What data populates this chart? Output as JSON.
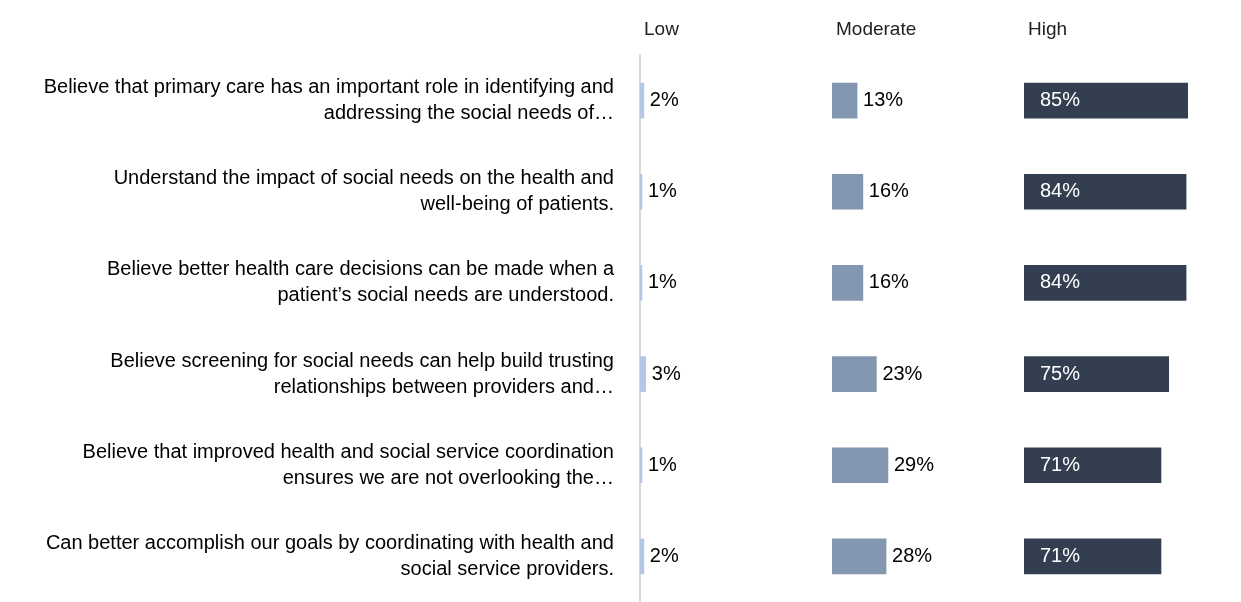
{
  "chart_data": [
    {
      "type": "bar",
      "orientation": "horizontal",
      "title": "Low",
      "categories": [
        "Believe that primary care has an important role in identifying and addressing the social needs of…",
        "Understand the impact of social needs on the health and well-being of patients.",
        "Believe better health care decisions can be made when a patient’s social needs are understood.",
        "Believe screening for social needs can help build trusting relationships between providers and…",
        "Believe that improved health and social service coordination ensures we are not overlooking the…",
        "Can better accomplish our goals by coordinating with health and social service providers."
      ],
      "values": [
        2,
        1,
        1,
        3,
        1,
        2
      ],
      "value_labels": [
        "2%",
        "1%",
        "1%",
        "3%",
        "1%",
        "2%"
      ],
      "color": "#b4c7e7",
      "tick_labels": "y"
    },
    {
      "type": "bar",
      "orientation": "horizontal",
      "title": "Moderate",
      "categories": [
        null,
        null,
        null,
        null,
        null,
        null
      ],
      "values": [
        13,
        16,
        16,
        23,
        29,
        28
      ],
      "value_labels": [
        "13%",
        "16%",
        "16%",
        "23%",
        "29%",
        "28%"
      ],
      "color": "#8497b0",
      "tick_labels": false
    },
    {
      "type": "bar",
      "orientation": "horizontal",
      "title": "High",
      "categories": [
        null,
        null,
        null,
        null,
        null,
        null
      ],
      "values": [
        85,
        84,
        84,
        75,
        71,
        71
      ],
      "value_labels": [
        "85%",
        "84%",
        "84%",
        "75%",
        "71%",
        "71%"
      ],
      "color": "#333f50",
      "tick_labels": false
    }
  ]
}
